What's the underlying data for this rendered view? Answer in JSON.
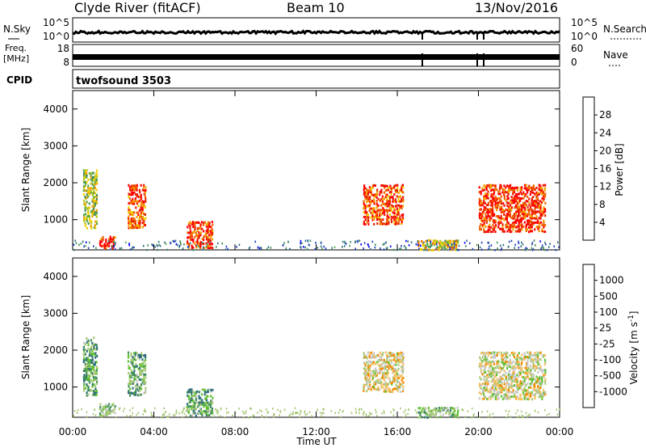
{
  "header": {
    "station": "Clyde River (fitACF)",
    "beam": "Beam 10",
    "date": "13/Nov/2016"
  },
  "strips": {
    "nsky": {
      "label": "N.Sky",
      "ticks": [
        "10^5",
        "10^0"
      ]
    },
    "nsearch": {
      "label": "N.Search",
      "ticks": [
        "10^5",
        "10^0"
      ]
    },
    "freq": {
      "label_line1": "Freq.",
      "label_line2": "[MHz]",
      "ticks": [
        "18",
        "8"
      ]
    },
    "nave": {
      "label": "Nave",
      "ticks": [
        "60",
        "0"
      ]
    },
    "cpid": {
      "label": "CPID",
      "program": "twofsound 3503"
    }
  },
  "colors": {
    "power": [
      "#0000ff",
      "#1f3fbf",
      "#2e6e7e",
      "#3e8c5a",
      "#58a84c",
      "#b8c41e",
      "#f0d000",
      "#f5a000",
      "#f06000",
      "#e82000",
      "#ff0000"
    ],
    "velocity": [
      "#ff0000",
      "#f05000",
      "#f58a00",
      "#f5c060",
      "#c8c8c8",
      "#a8c878",
      "#60c030",
      "#3e8c5a",
      "#2e6e7e",
      "#1f3fbf",
      "#0000ff"
    ]
  },
  "chart_data": [
    {
      "type": "heatmap",
      "title": "",
      "xlabel": "",
      "ylabel": "Slant Range [km]",
      "xlim": [
        "00:00",
        "00:00"
      ],
      "ylim": [
        180,
        4500
      ],
      "x_ticks": [
        "00:00",
        "04:00",
        "08:00",
        "12:00",
        "16:00",
        "20:00",
        "00:00"
      ],
      "y_ticks": [
        1000,
        2000,
        3000,
        4000
      ],
      "colorbar": {
        "label": "Power [dB]",
        "ticks": [
          "4",
          "8",
          "12",
          "16",
          "20",
          "24",
          "28"
        ],
        "range": [
          0,
          32
        ]
      },
      "scatter_regions": [
        {
          "t_start": 0.5,
          "t_end": 1.2,
          "range_min": 800,
          "range_max": 2400,
          "value": 16
        },
        {
          "t_start": 1.3,
          "t_end": 2.1,
          "range_min": 250,
          "range_max": 600,
          "value": 30
        },
        {
          "t_start": 2.7,
          "t_end": 3.6,
          "range_min": 800,
          "range_max": 2000,
          "value": 26
        },
        {
          "t_start": 5.6,
          "t_end": 6.9,
          "range_min": 250,
          "range_max": 1000,
          "value": 28
        },
        {
          "t_start": 14.3,
          "t_end": 16.3,
          "range_min": 900,
          "range_max": 2000,
          "value": 26
        },
        {
          "t_start": 17.0,
          "t_end": 19.0,
          "range_min": 200,
          "range_max": 500,
          "value": 18
        },
        {
          "t_start": 20.0,
          "t_end": 23.3,
          "range_min": 700,
          "range_max": 2000,
          "value": 28
        }
      ]
    },
    {
      "type": "heatmap",
      "title": "",
      "xlabel": "Time UT",
      "ylabel": "Slant Range [km]",
      "xlim": [
        "00:00",
        "00:00"
      ],
      "ylim": [
        180,
        4500
      ],
      "x_ticks": [
        "00:00",
        "04:00",
        "08:00",
        "12:00",
        "16:00",
        "20:00",
        "00:00"
      ],
      "y_ticks": [
        1000,
        2000,
        3000,
        4000
      ],
      "colorbar": {
        "label": "Velocity [m s^-1]",
        "ticks": [
          "-1000",
          "-500",
          "-100",
          "-25",
          "25",
          "100",
          "500",
          "1000"
        ],
        "range": [
          -1200,
          1200
        ]
      },
      "scatter_regions": [
        {
          "t_start": 0.5,
          "t_end": 1.2,
          "range_min": 800,
          "range_max": 2400,
          "value": 300
        },
        {
          "t_start": 1.3,
          "t_end": 2.1,
          "range_min": 250,
          "range_max": 600,
          "value": 100
        },
        {
          "t_start": 2.7,
          "t_end": 3.6,
          "range_min": 800,
          "range_max": 2000,
          "value": 300
        },
        {
          "t_start": 5.6,
          "t_end": 6.9,
          "range_min": 250,
          "range_max": 1000,
          "value": 300
        },
        {
          "t_start": 14.3,
          "t_end": 16.3,
          "range_min": 900,
          "range_max": 2000,
          "value": -300
        },
        {
          "t_start": 17.0,
          "t_end": 19.0,
          "range_min": 200,
          "range_max": 500,
          "value": 150
        },
        {
          "t_start": 20.0,
          "t_end": 23.3,
          "range_min": 700,
          "range_max": 2000,
          "value": -200
        }
      ]
    }
  ]
}
